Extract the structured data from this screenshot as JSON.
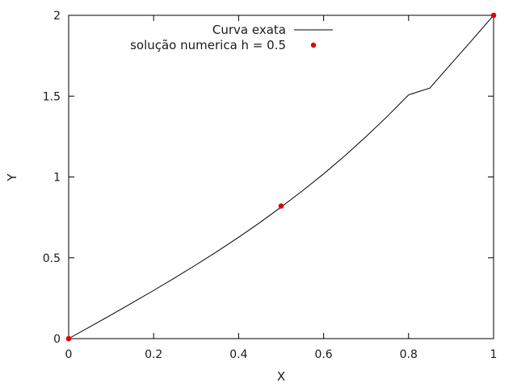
{
  "chart_data": {
    "type": "line",
    "xlabel": "X",
    "ylabel": "Y",
    "xlim": [
      0,
      1
    ],
    "ylim": [
      0,
      2
    ],
    "xticks": [
      "0",
      "0.2",
      "0.4",
      "0.6",
      "0.8",
      "1"
    ],
    "yticks": [
      "0",
      "0.5",
      "1",
      "1.5",
      "2"
    ],
    "grid": false,
    "legend_position": "top-right",
    "series": [
      {
        "name": "Curva exata",
        "style": "line",
        "color": "#000000",
        "x": [
          0,
          0.05,
          0.1,
          0.15,
          0.2,
          0.25,
          0.3,
          0.35,
          0.4,
          0.45,
          0.5,
          0.55,
          0.6,
          0.65,
          0.7,
          0.75,
          0.8,
          0.85,
          0.9,
          0.95,
          1
        ],
        "y": [
          0,
          0.073,
          0.147,
          0.222,
          0.298,
          0.376,
          0.457,
          0.54,
          0.627,
          0.718,
          0.814,
          0.914,
          1.019,
          1.131,
          1.25,
          1.375,
          1.508,
          1.55,
          1.7,
          1.849,
          2
        ]
      },
      {
        "name": "solução numerica h = 0.5",
        "style": "points",
        "color": "#e00000",
        "x": [
          0,
          0.5,
          1
        ],
        "y": [
          0,
          0.82,
          2
        ]
      }
    ]
  }
}
